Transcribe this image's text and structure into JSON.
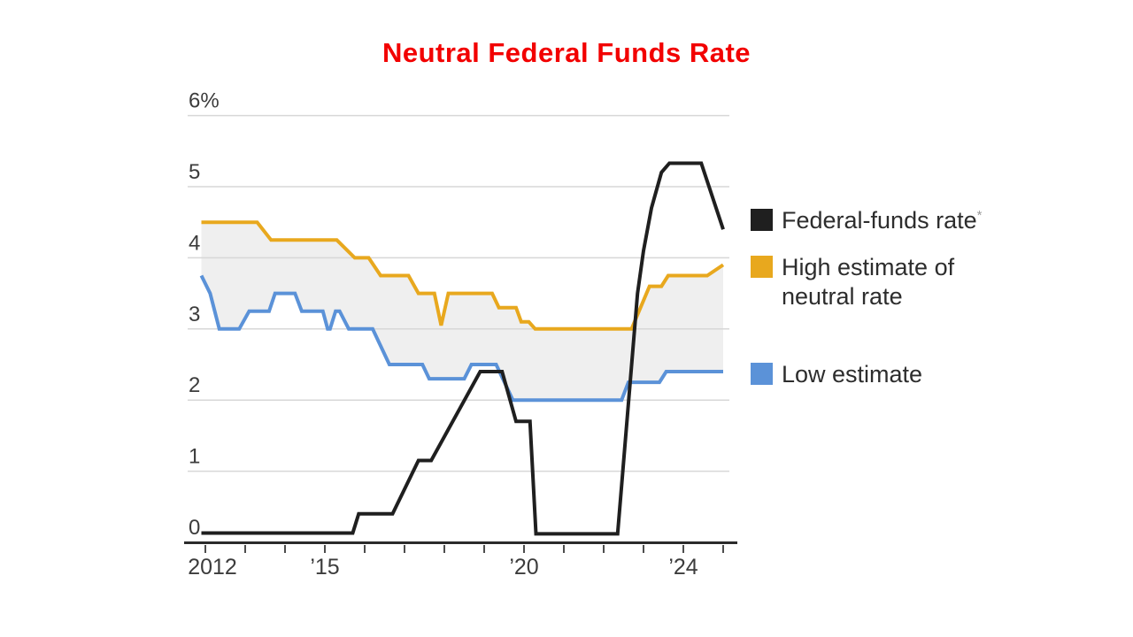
{
  "title": {
    "text": "Neutral Federal Funds Rate",
    "color": "#f20000"
  },
  "legend": {
    "items": [
      {
        "id": "federal-funds-rate",
        "label": "Federal-funds rate",
        "superscript": "*",
        "color": "#1f1f1f"
      },
      {
        "id": "high-estimate-of-neutral-rate",
        "label": "High estimate of neutral rate",
        "superscript": "",
        "color": "#e8a81e"
      },
      {
        "id": "low-estimate",
        "label": "Low estimate",
        "superscript": "",
        "color": "#5b92d8"
      }
    ]
  },
  "chart_data": {
    "type": "line",
    "title": "Neutral Federal Funds Rate",
    "xlabel": "",
    "ylabel": "%",
    "xlim": [
      2011.9,
      2025.1
    ],
    "ylim": [
      0,
      6
    ],
    "grid": true,
    "legend_position": "right",
    "band_color": "#efefef",
    "grid_color": "#d7d7d7",
    "axis_color": "#2b2b2b",
    "tick_color": "#4d4d4d",
    "label_color": "#3c3c3c",
    "y_ticks": [
      {
        "value": 0,
        "label": "0"
      },
      {
        "value": 1,
        "label": "1"
      },
      {
        "value": 2,
        "label": "2"
      },
      {
        "value": 3,
        "label": "3"
      },
      {
        "value": 4,
        "label": "4"
      },
      {
        "value": 5,
        "label": "5"
      },
      {
        "value": 6,
        "label": "6%"
      }
    ],
    "x_ticks": [
      2012,
      2013,
      2014,
      2015,
      2016,
      2017,
      2018,
      2019,
      2020,
      2021,
      2022,
      2023,
      2024,
      2025
    ],
    "x_labels": [
      {
        "year": 2012,
        "label": "2012"
      },
      {
        "year": 2015,
        "label": "’15"
      },
      {
        "year": 2020,
        "label": "’20"
      },
      {
        "year": 2024,
        "label": "’24"
      }
    ],
    "series": [
      {
        "id": "high-estimate-of-neutral-rate",
        "name": "High estimate of neutral rate",
        "color": "#e8a81e",
        "points": [
          [
            2011.9,
            4.5
          ],
          [
            2013.3,
            4.5
          ],
          [
            2013.65,
            4.25
          ],
          [
            2015.3,
            4.25
          ],
          [
            2015.75,
            4.0
          ],
          [
            2016.1,
            4.0
          ],
          [
            2016.4,
            3.75
          ],
          [
            2017.1,
            3.75
          ],
          [
            2017.35,
            3.5
          ],
          [
            2017.75,
            3.5
          ],
          [
            2017.92,
            3.05
          ],
          [
            2018.1,
            3.5
          ],
          [
            2019.2,
            3.5
          ],
          [
            2019.37,
            3.3
          ],
          [
            2019.8,
            3.3
          ],
          [
            2019.93,
            3.1
          ],
          [
            2020.12,
            3.1
          ],
          [
            2020.28,
            3.0
          ],
          [
            2022.7,
            3.0
          ],
          [
            2023.15,
            3.6
          ],
          [
            2023.45,
            3.6
          ],
          [
            2023.62,
            3.75
          ],
          [
            2024.6,
            3.75
          ],
          [
            2025.0,
            3.9
          ]
        ]
      },
      {
        "id": "low-estimate",
        "name": "Low estimate",
        "color": "#5b92d8",
        "points": [
          [
            2011.9,
            3.75
          ],
          [
            2012.12,
            3.5
          ],
          [
            2012.35,
            3.0
          ],
          [
            2012.85,
            3.0
          ],
          [
            2013.1,
            3.25
          ],
          [
            2013.6,
            3.25
          ],
          [
            2013.75,
            3.5
          ],
          [
            2014.25,
            3.5
          ],
          [
            2014.42,
            3.25
          ],
          [
            2014.95,
            3.25
          ],
          [
            2015.07,
            3.0
          ],
          [
            2015.13,
            3.0
          ],
          [
            2015.27,
            3.25
          ],
          [
            2015.37,
            3.25
          ],
          [
            2015.6,
            3.0
          ],
          [
            2016.2,
            3.0
          ],
          [
            2016.62,
            2.5
          ],
          [
            2017.45,
            2.5
          ],
          [
            2017.62,
            2.3
          ],
          [
            2018.5,
            2.3
          ],
          [
            2018.68,
            2.5
          ],
          [
            2019.3,
            2.5
          ],
          [
            2019.72,
            2.0
          ],
          [
            2022.45,
            2.0
          ],
          [
            2022.62,
            2.25
          ],
          [
            2023.4,
            2.25
          ],
          [
            2023.57,
            2.4
          ],
          [
            2025.0,
            2.4
          ]
        ]
      },
      {
        "id": "federal-funds-rate",
        "name": "Federal-funds rate*",
        "color": "#1f1f1f",
        "points": [
          [
            2011.9,
            0.13
          ],
          [
            2015.7,
            0.13
          ],
          [
            2015.85,
            0.4
          ],
          [
            2016.7,
            0.4
          ],
          [
            2017.35,
            1.15
          ],
          [
            2017.67,
            1.15
          ],
          [
            2018.9,
            2.4
          ],
          [
            2019.45,
            2.4
          ],
          [
            2019.8,
            1.7
          ],
          [
            2020.15,
            1.7
          ],
          [
            2020.3,
            0.12
          ],
          [
            2022.35,
            0.12
          ],
          [
            2022.85,
            3.5
          ],
          [
            2023.0,
            4.1
          ],
          [
            2023.2,
            4.7
          ],
          [
            2023.45,
            5.2
          ],
          [
            2023.65,
            5.33
          ],
          [
            2024.45,
            5.33
          ],
          [
            2025.0,
            4.4
          ]
        ]
      }
    ]
  }
}
